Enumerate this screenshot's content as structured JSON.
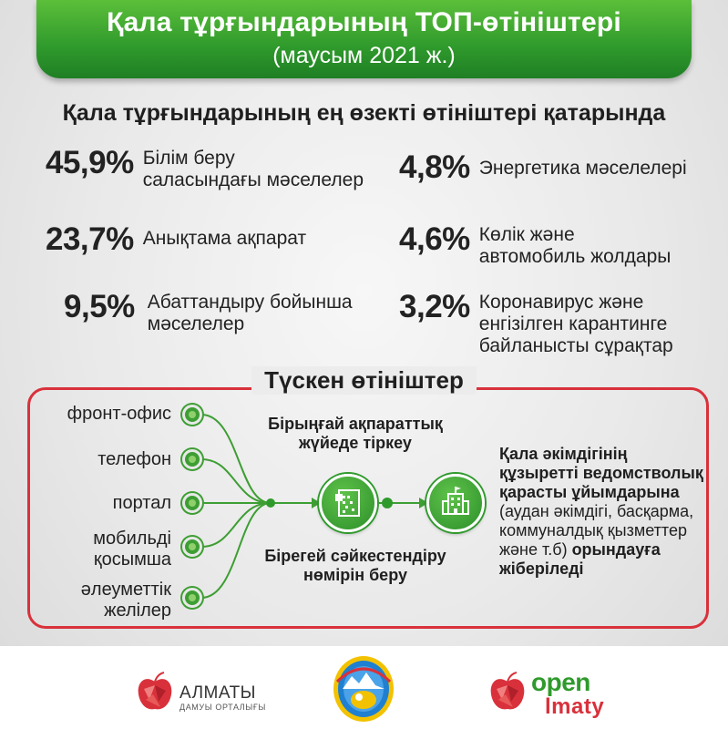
{
  "header": {
    "title": "Қала тұрғындарының ТОП-өтініштері",
    "subtitle": "(маусым 2021 ж.)"
  },
  "section_title": "Қала тұрғындарының ең өзекті өтініштері қатарында",
  "stats": [
    {
      "pct": "45,9%",
      "line1": "Білім беру",
      "line2": "саласындағы мәселелер",
      "line3": ""
    },
    {
      "pct": "23,7%",
      "line1": "Анықтама ақпарат",
      "line2": "",
      "line3": ""
    },
    {
      "pct": "9,5%",
      "line1": "Абаттандыру бойынша",
      "line2": "мәселелер",
      "line3": ""
    },
    {
      "pct": "4,8%",
      "line1": "Энергетика мәселелері",
      "line2": "",
      "line3": ""
    },
    {
      "pct": "4,6%",
      "line1": "Көлік және",
      "line2": "автомобиль жолдары",
      "line3": ""
    },
    {
      "pct": "3,2%",
      "line1": "Коронавирус және",
      "line2": "енгізілген карантинге",
      "line3": "байланысты сұрақтар"
    }
  ],
  "process": {
    "title": "Түскен өтініштер",
    "sources": [
      {
        "line1": "фронт-офис",
        "line2": ""
      },
      {
        "line1": "телефон",
        "line2": ""
      },
      {
        "line1": "портал",
        "line2": ""
      },
      {
        "line1": "мобильді",
        "line2": "қосымша"
      },
      {
        "line1": "әлеуметтік",
        "line2": "желілер"
      }
    ],
    "step1_line1": "Бірыңғай ақпараттық",
    "step1_line2": "жүйеде тіркеу",
    "step2_line1": "Бірегей сәйкестендіру",
    "step2_line2": "нөмірін беру",
    "result": {
      "bold1": "Қала әкімдігінің құзыретті ведомстволық қарасты ұйымдарына",
      "normal": " (аудан әкімдігі, басқарма, коммуналдық қызметтер және т.б) ",
      "bold2": "орындауға жіберіледі"
    }
  },
  "footer": {
    "almaty_name": "АЛМАТЫ",
    "almaty_sub": "ДАМУЫ ОРТАЛЫҒЫ",
    "open_text": "open",
    "imaty_text": "lmaty"
  },
  "colors": {
    "green": "#2f9a2c",
    "red": "#d9313b"
  }
}
